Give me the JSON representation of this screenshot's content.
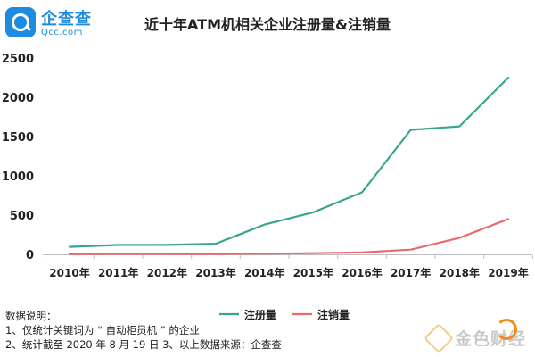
{
  "logo": {
    "name": "企查查",
    "sub": "Qcc.com"
  },
  "chart_data": {
    "type": "line",
    "title": "近十年ATM机相关企业注册量&注销量",
    "categories": [
      "2010年",
      "2011年",
      "2012年",
      "2013年",
      "2014年",
      "2015年",
      "2016年",
      "2017年",
      "2018年",
      "2019年"
    ],
    "ylim": [
      0,
      2500
    ],
    "yticks": [
      0,
      500,
      1000,
      1500,
      2000,
      2500
    ],
    "grid": false,
    "legend_position": "bottom-center",
    "series": [
      {
        "name": "注册量",
        "color": "#3aa58f",
        "values": [
          95,
          120,
          120,
          135,
          380,
          535,
          790,
          1585,
          1630,
          2250
        ]
      },
      {
        "name": "注销量",
        "color": "#e86a6c",
        "values": [
          2,
          3,
          3,
          2,
          8,
          15,
          25,
          60,
          210,
          450
        ]
      }
    ]
  },
  "notes": {
    "heading": "数据说明：",
    "line1": "1、仅统计关键词为 “ 自动柜员机 ” 的企业",
    "line2": "2、统计截至 2020 年 8 月 19 日     3、以上数据来源：企查查"
  },
  "watermark": {
    "text": "金色财经"
  }
}
